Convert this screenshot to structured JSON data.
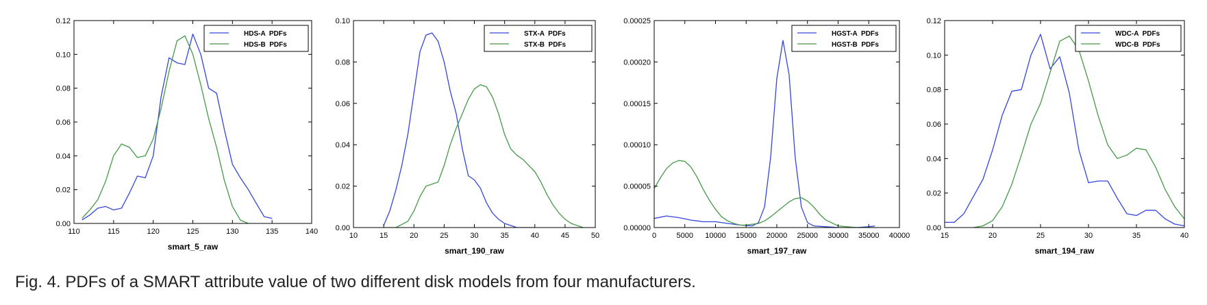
{
  "caption": "Fig. 4. PDFs of a SMART attribute value of two different disk models from four manufacturers.",
  "colors": {
    "series_a": "#3344dd",
    "series_b": "#449944"
  },
  "chart_data": [
    {
      "type": "line",
      "xlabel": "smart_5_raw",
      "xlim": [
        110,
        140
      ],
      "ylim": [
        0,
        0.12
      ],
      "xticks": [
        "110",
        "115",
        "120",
        "125",
        "130",
        "135",
        "140"
      ],
      "yticks": [
        "0.00",
        "0.02",
        "0.04",
        "0.06",
        "0.08",
        "0.10",
        "0.12"
      ],
      "legend_position": "top-right",
      "series": [
        {
          "name": "HDS-A  PDFs",
          "x": [
            111,
            112,
            113,
            114,
            115,
            116,
            117,
            118,
            119,
            120,
            121,
            122,
            123,
            124,
            125,
            126,
            127,
            128,
            129,
            130,
            131,
            132,
            133,
            134,
            135
          ],
          "y": [
            0.002,
            0.005,
            0.009,
            0.01,
            0.008,
            0.009,
            0.018,
            0.028,
            0.027,
            0.04,
            0.075,
            0.098,
            0.095,
            0.094,
            0.112,
            0.1,
            0.08,
            0.077,
            0.055,
            0.035,
            0.027,
            0.02,
            0.012,
            0.004,
            0.003
          ]
        },
        {
          "name": "HDS-B  PDFs",
          "x": [
            111,
            112,
            113,
            114,
            115,
            116,
            117,
            118,
            119,
            120,
            121,
            122,
            123,
            124,
            125,
            126,
            127,
            128,
            129,
            130,
            131,
            132
          ],
          "y": [
            0.003,
            0.008,
            0.014,
            0.025,
            0.04,
            0.047,
            0.045,
            0.039,
            0.04,
            0.05,
            0.068,
            0.09,
            0.108,
            0.111,
            0.1,
            0.082,
            0.062,
            0.045,
            0.025,
            0.01,
            0.002,
            0.0
          ]
        }
      ]
    },
    {
      "type": "line",
      "xlabel": "smart_190_raw",
      "xlim": [
        10,
        50
      ],
      "ylim": [
        0,
        0.1
      ],
      "xticks": [
        "10",
        "15",
        "20",
        "25",
        "30",
        "35",
        "40",
        "45",
        "50"
      ],
      "yticks": [
        "0.00",
        "0.02",
        "0.04",
        "0.06",
        "0.08",
        "0.10"
      ],
      "legend_position": "top-right",
      "series": [
        {
          "name": "STX-A  PDFs",
          "x": [
            15,
            16,
            17,
            18,
            19,
            20,
            21,
            22,
            23,
            24,
            25,
            26,
            27,
            28,
            29,
            30,
            31,
            32,
            33,
            34,
            35,
            36,
            37,
            38,
            39,
            40
          ],
          "y": [
            0.001,
            0.008,
            0.018,
            0.03,
            0.045,
            0.065,
            0.085,
            0.093,
            0.094,
            0.09,
            0.08,
            0.066,
            0.055,
            0.038,
            0.025,
            0.023,
            0.019,
            0.012,
            0.007,
            0.004,
            0.002,
            0.001,
            0.0,
            0.0,
            0.0,
            0.0
          ]
        },
        {
          "name": "STX-B  PDFs",
          "x": [
            15,
            17,
            19,
            20,
            21,
            22,
            23,
            24,
            25,
            26,
            27,
            28,
            29,
            30,
            31,
            32,
            33,
            34,
            35,
            36,
            37,
            38,
            39,
            40,
            41,
            42,
            43,
            44,
            45,
            46,
            47,
            48
          ],
          "y": [
            0.0,
            0.0,
            0.003,
            0.008,
            0.015,
            0.02,
            0.021,
            0.022,
            0.03,
            0.04,
            0.048,
            0.055,
            0.062,
            0.067,
            0.069,
            0.068,
            0.063,
            0.055,
            0.045,
            0.038,
            0.035,
            0.033,
            0.03,
            0.027,
            0.022,
            0.016,
            0.011,
            0.007,
            0.004,
            0.002,
            0.001,
            0.0
          ]
        }
      ]
    },
    {
      "type": "line",
      "xlabel": "smart_197_raw",
      "xlim": [
        0,
        40000
      ],
      "ylim": [
        0,
        0.00025
      ],
      "xticks": [
        "0",
        "5000",
        "10000",
        "15000",
        "20000",
        "25000",
        "30000",
        "35000",
        "40000"
      ],
      "yticks": [
        "0.00000",
        "0.00005",
        "0.00010",
        "0.00015",
        "0.00020",
        "0.00025"
      ],
      "legend_position": "top-right",
      "series": [
        {
          "name": "HGST-A  PDFs",
          "x": [
            0,
            2000,
            4000,
            6000,
            8000,
            10000,
            12000,
            14000,
            16000,
            17000,
            18000,
            19000,
            20000,
            21000,
            22000,
            23000,
            24000,
            25000,
            26000,
            28000,
            30000,
            33000,
            35000,
            36000
          ],
          "y": [
            1.1e-05,
            1.4e-05,
            1.2e-05,
            9e-06,
            7e-06,
            7e-06,
            5e-06,
            3e-06,
            2e-06,
            6e-06,
            2.5e-05,
            8.5e-05,
            0.00018,
            0.000226,
            0.000185,
            8.5e-05,
            2.5e-05,
            6e-06,
            2e-06,
            1e-06,
            0.0,
            0.0,
            1e-06,
            2e-06
          ]
        },
        {
          "name": "HGST-B  PDFs",
          "x": [
            0,
            1000,
            2000,
            3000,
            4000,
            5000,
            6000,
            7000,
            8000,
            9000,
            10000,
            11000,
            12000,
            13000,
            14000,
            15000,
            16000,
            17000,
            18000,
            19000,
            20000,
            21000,
            22000,
            23000,
            24000,
            25000,
            26000,
            27000,
            28000,
            30000,
            33000,
            36000
          ],
          "y": [
            4.7e-05,
            6e-05,
            7.1e-05,
            7.8e-05,
            8.1e-05,
            8e-05,
            7.3e-05,
            6.1e-05,
            4.6e-05,
            3.3e-05,
            2.2e-05,
            1.3e-05,
            8e-06,
            5e-06,
            3e-06,
            3e-06,
            4e-06,
            5e-06,
            8e-06,
            1.3e-05,
            1.9e-05,
            2.5e-05,
            3.1e-05,
            3.5e-05,
            3.6e-05,
            3.2e-05,
            2.5e-05,
            1.6e-05,
            9e-06,
            2e-06,
            0.0,
            0.0
          ]
        }
      ]
    },
    {
      "type": "line",
      "xlabel": "smart_194_raw",
      "xlim": [
        15,
        40
      ],
      "ylim": [
        0,
        0.12
      ],
      "xticks": [
        "15",
        "20",
        "25",
        "30",
        "35",
        "40"
      ],
      "yticks": [
        "0.00",
        "0.02",
        "0.04",
        "0.06",
        "0.08",
        "0.10",
        "0.12"
      ],
      "legend_position": "top-right",
      "series": [
        {
          "name": "WDC-A  PDFs",
          "x": [
            15,
            16,
            17,
            18,
            19,
            20,
            21,
            22,
            23,
            24,
            25,
            26,
            27,
            28,
            29,
            30,
            31,
            32,
            33,
            34,
            35,
            36,
            37,
            38,
            39,
            40
          ],
          "y": [
            0.003,
            0.003,
            0.008,
            0.018,
            0.028,
            0.045,
            0.065,
            0.079,
            0.08,
            0.1,
            0.112,
            0.092,
            0.099,
            0.078,
            0.045,
            0.026,
            0.027,
            0.027,
            0.017,
            0.008,
            0.007,
            0.01,
            0.01,
            0.005,
            0.002,
            0.001
          ]
        },
        {
          "name": "WDC-B  PDFs",
          "x": [
            18,
            19,
            20,
            21,
            22,
            23,
            24,
            25,
            26,
            27,
            28,
            29,
            30,
            31,
            32,
            33,
            34,
            35,
            36,
            37,
            38,
            39,
            40
          ],
          "y": [
            0.0,
            0.001,
            0.004,
            0.012,
            0.025,
            0.042,
            0.06,
            0.072,
            0.09,
            0.108,
            0.111,
            0.103,
            0.085,
            0.065,
            0.048,
            0.04,
            0.042,
            0.046,
            0.045,
            0.035,
            0.022,
            0.012,
            0.005
          ]
        }
      ]
    }
  ]
}
